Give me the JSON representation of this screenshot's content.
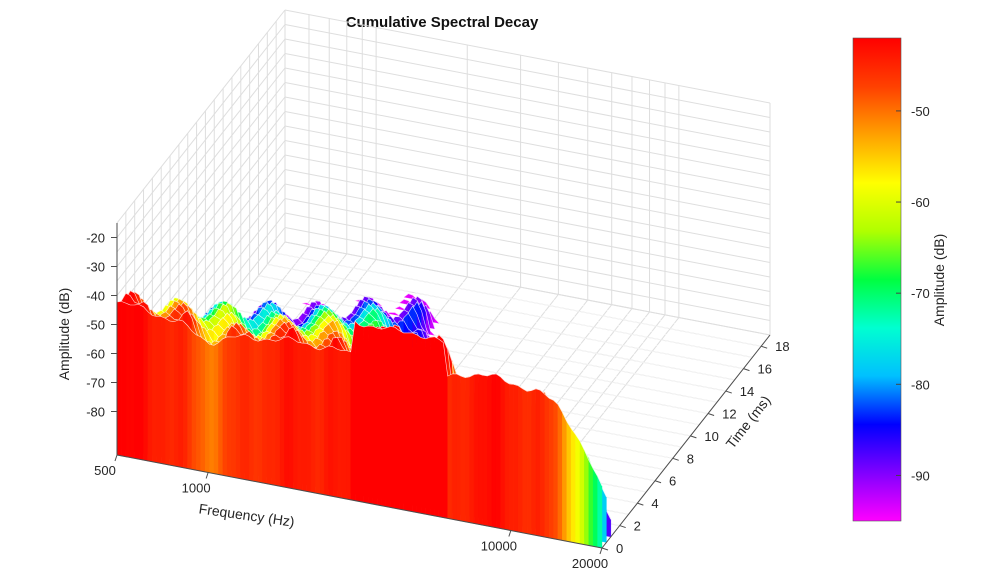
{
  "chart_data": {
    "type": "surface",
    "title": "Cumulative Spectral Decay",
    "xlabel": "Frequency (Hz)",
    "ylabel": "Time (ms)",
    "zlabel": "Amplitude (dB)",
    "x_scale": "log",
    "xlim": [
      500,
      20000
    ],
    "x_ticks": [
      500,
      1000,
      10000,
      20000
    ],
    "ylim": [
      0,
      19
    ],
    "y_ticks": [
      0,
      2,
      4,
      6,
      8,
      10,
      12,
      14,
      16,
      18
    ],
    "zlim": [
      -95,
      -15
    ],
    "z_ticks": [
      -80,
      -70,
      -60,
      -50,
      -40,
      -30,
      -20
    ],
    "grid": true,
    "colormap": "rainbow",
    "colorbar": {
      "label": "Amplitude (dB)",
      "range": [
        -95,
        -42
      ],
      "ticks": [
        -90,
        -80,
        -70,
        -60,
        -50
      ]
    },
    "colormap_stops": [
      "#ff00ff",
      "#8000ff",
      "#0000ff",
      "#00c0ff",
      "#00ffd0",
      "#00ff40",
      "#b0ff00",
      "#ffff00",
      "#ffa000",
      "#ff4000",
      "#ff0000"
    ],
    "frequency_response_t0": {
      "freq_hz": [
        500,
        600,
        700,
        800,
        900,
        1000,
        1200,
        1500,
        2000,
        2500,
        3000,
        4000,
        5000,
        6000,
        7000,
        8000,
        10000,
        12000,
        14000,
        16000,
        18000,
        20000
      ],
      "amp_db": [
        -42,
        -43,
        -44,
        -45,
        -48,
        -50,
        -47,
        -45,
        -44,
        -44,
        -45,
        -46,
        -45,
        -47,
        -44,
        -43,
        -44,
        -45,
        -48,
        -55,
        -65,
        -75
      ]
    }
  }
}
